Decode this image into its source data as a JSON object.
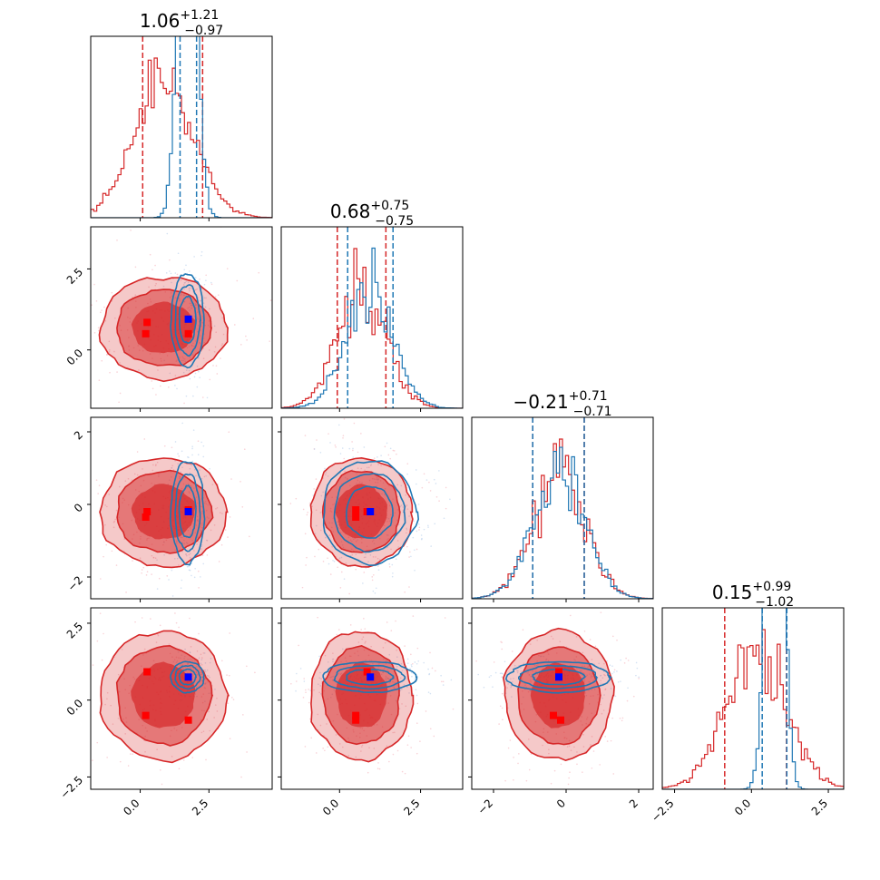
{
  "chart_data": {
    "type": "corner",
    "n_params": 4,
    "colors": {
      "red": "#d62728",
      "blue": "#1f77b4",
      "red_fill": "#d62728",
      "red_marker": "#ff0000",
      "blue_marker": "#0000ff"
    },
    "titles": [
      {
        "median": "1.06",
        "plus": "+1.21",
        "minus": "−0.97"
      },
      {
        "median": "0.68",
        "plus": "+0.75",
        "minus": "−0.75"
      },
      {
        "median": "−0.21",
        "plus": "+0.71",
        "minus": "−0.71"
      },
      {
        "median": "0.15",
        "plus": "+0.99",
        "minus": "−1.02"
      }
    ],
    "ranges": [
      [
        -1.8,
        4.8
      ],
      [
        -1.8,
        3.8
      ],
      [
        -2.6,
        2.4
      ],
      [
        -2.9,
        3.0
      ]
    ],
    "ticks": [
      [
        {
          "v": 0.0,
          "label": "0.0"
        },
        {
          "v": 2.5,
          "label": "2.5"
        }
      ],
      [
        {
          "v": 0.0,
          "label": "0.0"
        },
        {
          "v": 2.5,
          "label": "2.5"
        }
      ],
      [
        {
          "v": -2,
          "label": "−2"
        },
        {
          "v": 0,
          "label": "0"
        },
        {
          "v": 2,
          "label": "2"
        }
      ],
      [
        {
          "v": -2.5,
          "label": "−2.5"
        },
        {
          "v": 0.0,
          "label": "0.0"
        },
        {
          "v": 2.5,
          "label": "2.5"
        }
      ]
    ],
    "red_posterior": {
      "mean": [
        0.85,
        0.68,
        -0.21,
        0.15
      ],
      "sd": [
        1.09,
        0.75,
        0.71,
        1.0
      ],
      "quantiles": [
        [
          0.09,
          2.27
        ],
        [
          -0.07,
          1.43
        ],
        [
          -0.92,
          0.5
        ],
        [
          -0.87,
          1.14
        ]
      ],
      "truth_markers": [
        [
          0.25,
          0.85,
          -0.2,
          0.92
        ],
        [
          0.2,
          0.5,
          -0.35,
          -0.5
        ],
        [
          1.75,
          0.5,
          -0.15,
          -0.65
        ]
      ]
    },
    "blue_posterior": {
      "mean": [
        1.72,
        0.92,
        -0.21,
        0.75
      ],
      "sd": [
        0.3,
        0.72,
        0.71,
        0.25
      ],
      "quantiles": [
        [
          1.45,
          2.05
        ],
        [
          0.25,
          1.65
        ],
        [
          -0.92,
          0.5
        ],
        [
          0.35,
          1.15
        ]
      ],
      "truth_marker": [
        1.75,
        0.95,
        -0.2,
        0.75
      ]
    }
  }
}
